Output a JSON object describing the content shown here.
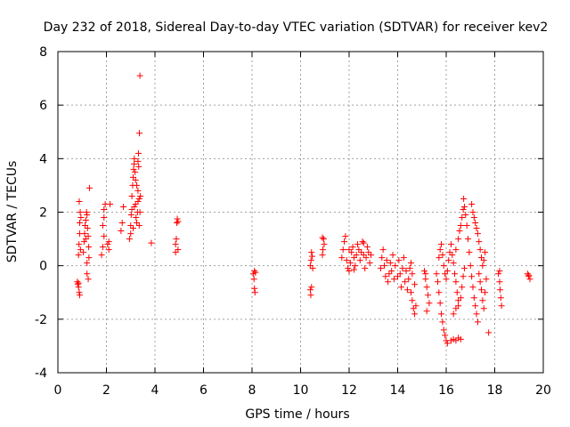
{
  "chart_data": {
    "type": "scatter",
    "title": "Day 232 of 2018, Sidereal Day-to-day VTEC variation (SDTVAR) for receiver kev2",
    "xlabel": "GPS time / hours",
    "ylabel": "SDTVAR / TECUs",
    "xlim": [
      0,
      20
    ],
    "ylim": [
      -4,
      8
    ],
    "x_ticks": [
      0,
      2,
      4,
      6,
      8,
      10,
      12,
      14,
      16,
      18,
      20
    ],
    "y_ticks": [
      -4,
      -2,
      0,
      2,
      4,
      6,
      8
    ],
    "x_tick_labels": [
      "0",
      "2",
      "4",
      "6",
      "8",
      "10",
      "12",
      "14",
      "16",
      "18",
      "20"
    ],
    "y_tick_labels": [
      "-4",
      "-2",
      "0",
      "2",
      "4",
      "6",
      "8"
    ],
    "grid": true,
    "marker": "+",
    "color": "#ff0000",
    "series": [
      {
        "name": "SDTVAR",
        "points": [
          [
            0.8,
            -0.6
          ],
          [
            0.82,
            -0.7
          ],
          [
            0.85,
            -0.8
          ],
          [
            0.88,
            -1.0
          ],
          [
            0.9,
            -1.1
          ],
          [
            0.85,
            -0.65
          ],
          [
            0.85,
            0.4
          ],
          [
            0.87,
            0.8
          ],
          [
            0.9,
            1.2
          ],
          [
            0.9,
            1.6
          ],
          [
            0.92,
            2.0
          ],
          [
            0.88,
            2.4
          ],
          [
            0.95,
            1.8
          ],
          [
            0.93,
            0.6
          ],
          [
            1.05,
            0.5
          ],
          [
            1.08,
            0.9
          ],
          [
            1.1,
            1.2
          ],
          [
            1.12,
            1.5
          ],
          [
            1.15,
            1.7
          ],
          [
            1.18,
            2.0
          ],
          [
            1.2,
            1.9
          ],
          [
            1.22,
            1.4
          ],
          [
            1.25,
            1.1
          ],
          [
            1.27,
            0.7
          ],
          [
            1.28,
            0.3
          ],
          [
            1.2,
            -0.3
          ],
          [
            1.25,
            -0.5
          ],
          [
            1.2,
            0.1
          ],
          [
            1.3,
            2.9
          ],
          [
            1.15,
            1.0
          ],
          [
            1.8,
            0.4
          ],
          [
            1.85,
            0.7
          ],
          [
            1.9,
            1.1
          ],
          [
            1.85,
            1.5
          ],
          [
            1.9,
            2.1
          ],
          [
            1.95,
            2.3
          ],
          [
            1.9,
            1.8
          ],
          [
            2.05,
            0.8
          ],
          [
            2.1,
            0.9
          ],
          [
            2.15,
            2.3
          ],
          [
            2.1,
            0.6
          ],
          [
            2.6,
            1.3
          ],
          [
            2.65,
            1.6
          ],
          [
            2.7,
            2.2
          ],
          [
            2.95,
            1.0
          ],
          [
            3.0,
            1.2
          ],
          [
            3.0,
            1.5
          ],
          [
            3.02,
            1.9
          ],
          [
            3.05,
            2.1
          ],
          [
            3.05,
            2.6
          ],
          [
            3.08,
            3.0
          ],
          [
            3.1,
            3.3
          ],
          [
            3.12,
            3.6
          ],
          [
            3.14,
            3.8
          ],
          [
            3.15,
            4.0
          ],
          [
            3.18,
            3.5
          ],
          [
            3.2,
            3.2
          ],
          [
            3.2,
            2.3
          ],
          [
            3.22,
            1.8
          ],
          [
            3.25,
            1.6
          ],
          [
            3.28,
            2.0
          ],
          [
            3.3,
            2.4
          ],
          [
            3.3,
            2.8
          ],
          [
            3.3,
            3.9
          ],
          [
            3.32,
            4.2
          ],
          [
            3.33,
            3.7
          ],
          [
            3.35,
            2.5
          ],
          [
            3.35,
            1.5
          ],
          [
            3.38,
            2.0
          ],
          [
            3.4,
            2.6
          ],
          [
            3.36,
            4.95
          ],
          [
            3.38,
            7.1
          ],
          [
            3.1,
            1.4
          ],
          [
            3.15,
            2.2
          ],
          [
            3.25,
            3.0
          ],
          [
            3.85,
            0.85
          ],
          [
            4.85,
            0.5
          ],
          [
            4.85,
            0.8
          ],
          [
            4.88,
            1.0
          ],
          [
            4.9,
            1.6
          ],
          [
            4.92,
            1.75
          ],
          [
            4.95,
            0.6
          ],
          [
            4.95,
            1.65
          ],
          [
            8.05,
            -0.3
          ],
          [
            8.08,
            -0.5
          ],
          [
            8.1,
            -0.85
          ],
          [
            8.12,
            -1.0
          ],
          [
            8.1,
            -0.2
          ],
          [
            8.14,
            -0.25
          ],
          [
            10.4,
            -0.9
          ],
          [
            10.42,
            -1.1
          ],
          [
            10.45,
            -0.8
          ],
          [
            10.4,
            0.0
          ],
          [
            10.43,
            0.2
          ],
          [
            10.45,
            0.5
          ],
          [
            10.48,
            0.35
          ],
          [
            10.5,
            -0.1
          ],
          [
            10.9,
            0.4
          ],
          [
            10.92,
            0.6
          ],
          [
            10.95,
            1.0
          ],
          [
            10.97,
            0.8
          ],
          [
            10.9,
            1.05
          ],
          [
            11.7,
            0.3
          ],
          [
            11.75,
            0.6
          ],
          [
            11.8,
            0.9
          ],
          [
            11.85,
            1.1
          ],
          [
            11.9,
            0.2
          ],
          [
            11.95,
            -0.1
          ],
          [
            12.0,
            -0.2
          ],
          [
            12.05,
            0.1
          ],
          [
            12.1,
            0.5
          ],
          [
            12.15,
            0.7
          ],
          [
            12.2,
            0.3
          ],
          [
            12.25,
            0.0
          ],
          [
            12.3,
            0.4
          ],
          [
            12.35,
            0.8
          ],
          [
            12.4,
            0.6
          ],
          [
            12.45,
            0.2
          ],
          [
            12.5,
            0.5
          ],
          [
            12.55,
            0.9
          ],
          [
            12.6,
            0.4
          ],
          [
            12.65,
            -0.1
          ],
          [
            12.7,
            0.3
          ],
          [
            12.75,
            0.7
          ],
          [
            12.8,
            0.5
          ],
          [
            12.85,
            0.1
          ],
          [
            12.9,
            0.4
          ],
          [
            12.2,
            -0.15
          ],
          [
            12.6,
            0.85
          ],
          [
            12.0,
            0.6
          ],
          [
            13.3,
            -0.1
          ],
          [
            13.35,
            0.3
          ],
          [
            13.4,
            0.6
          ],
          [
            13.45,
            0.0
          ],
          [
            13.5,
            -0.4
          ],
          [
            13.55,
            0.2
          ],
          [
            13.6,
            -0.6
          ],
          [
            13.65,
            -0.3
          ],
          [
            13.7,
            0.1
          ],
          [
            13.75,
            -0.2
          ],
          [
            13.8,
            0.4
          ],
          [
            13.85,
            -0.5
          ],
          [
            13.9,
            0.0
          ],
          [
            14.0,
            -0.4
          ],
          [
            14.05,
            0.2
          ],
          [
            14.1,
            -0.3
          ],
          [
            14.15,
            -0.8
          ],
          [
            14.2,
            -0.1
          ],
          [
            14.25,
            0.3
          ],
          [
            14.3,
            -0.6
          ],
          [
            14.35,
            -0.2
          ],
          [
            14.4,
            -0.9
          ],
          [
            14.45,
            -0.5
          ],
          [
            14.5,
            -0.1
          ],
          [
            14.55,
            -1.0
          ],
          [
            14.6,
            -1.3
          ],
          [
            14.65,
            -1.6
          ],
          [
            14.7,
            -1.8
          ],
          [
            14.75,
            -1.5
          ],
          [
            14.7,
            -0.7
          ],
          [
            14.6,
            -0.3
          ],
          [
            14.55,
            0.1
          ],
          [
            15.1,
            -0.2
          ],
          [
            15.15,
            -0.5
          ],
          [
            15.2,
            -0.8
          ],
          [
            15.25,
            -1.1
          ],
          [
            15.3,
            -1.4
          ],
          [
            15.2,
            -1.7
          ],
          [
            15.15,
            -0.3
          ],
          [
            15.6,
            -0.3
          ],
          [
            15.65,
            -0.6
          ],
          [
            15.7,
            -1.0
          ],
          [
            15.75,
            -1.4
          ],
          [
            15.8,
            -1.8
          ],
          [
            15.85,
            -2.1
          ],
          [
            15.9,
            -2.4
          ],
          [
            15.95,
            -2.6
          ],
          [
            16.0,
            -2.8
          ],
          [
            16.05,
            -2.9
          ],
          [
            15.7,
            0.3
          ],
          [
            15.75,
            0.6
          ],
          [
            15.8,
            0.8
          ],
          [
            15.85,
            0.4
          ],
          [
            15.9,
            0.0
          ],
          [
            15.95,
            -0.3
          ],
          [
            16.0,
            -0.5
          ],
          [
            16.05,
            -0.2
          ],
          [
            16.1,
            0.2
          ],
          [
            16.15,
            0.5
          ],
          [
            16.2,
            0.8
          ],
          [
            16.25,
            0.4
          ],
          [
            16.3,
            0.1
          ],
          [
            16.35,
            -0.3
          ],
          [
            16.4,
            -0.6
          ],
          [
            16.45,
            -1.0
          ],
          [
            16.5,
            -1.3
          ],
          [
            16.3,
            -1.8
          ],
          [
            16.4,
            -1.6
          ],
          [
            16.5,
            -1.5
          ],
          [
            16.6,
            -1.2
          ],
          [
            16.65,
            -0.8
          ],
          [
            16.7,
            -0.4
          ],
          [
            16.75,
            -0.1
          ],
          [
            16.2,
            -2.8
          ],
          [
            16.3,
            -2.75
          ],
          [
            16.4,
            -2.8
          ],
          [
            16.5,
            -2.7
          ],
          [
            16.6,
            -2.75
          ],
          [
            16.4,
            0.6
          ],
          [
            16.5,
            1.0
          ],
          [
            16.55,
            1.3
          ],
          [
            16.6,
            1.5
          ],
          [
            16.65,
            1.8
          ],
          [
            16.7,
            2.1
          ],
          [
            16.72,
            2.5
          ],
          [
            16.75,
            2.2
          ],
          [
            16.8,
            1.9
          ],
          [
            16.85,
            1.5
          ],
          [
            16.9,
            1.0
          ],
          [
            16.95,
            0.5
          ],
          [
            17.0,
            0.0
          ],
          [
            17.05,
            -0.4
          ],
          [
            17.1,
            -0.8
          ],
          [
            17.15,
            -1.2
          ],
          [
            17.2,
            -1.5
          ],
          [
            17.25,
            -1.8
          ],
          [
            17.3,
            -2.1
          ],
          [
            17.05,
            2.3
          ],
          [
            17.1,
            2.0
          ],
          [
            17.15,
            1.8
          ],
          [
            17.2,
            1.6
          ],
          [
            17.25,
            1.4
          ],
          [
            17.3,
            1.2
          ],
          [
            17.35,
            0.9
          ],
          [
            17.4,
            0.6
          ],
          [
            17.45,
            0.3
          ],
          [
            17.5,
            0.0
          ],
          [
            17.35,
            -0.3
          ],
          [
            17.4,
            -0.6
          ],
          [
            17.45,
            -0.9
          ],
          [
            17.5,
            -1.3
          ],
          [
            17.55,
            -1.6
          ],
          [
            17.6,
            -1.0
          ],
          [
            17.65,
            -0.5
          ],
          [
            17.55,
            0.2
          ],
          [
            17.6,
            0.5
          ],
          [
            17.75,
            -2.5
          ],
          [
            18.15,
            -0.3
          ],
          [
            18.2,
            -0.6
          ],
          [
            18.22,
            -0.9
          ],
          [
            18.25,
            -1.2
          ],
          [
            18.28,
            -1.5
          ],
          [
            18.2,
            -0.2
          ],
          [
            19.35,
            -0.3
          ],
          [
            19.4,
            -0.4
          ],
          [
            19.45,
            -0.5
          ],
          [
            19.4,
            -0.35
          ]
        ]
      }
    ]
  }
}
